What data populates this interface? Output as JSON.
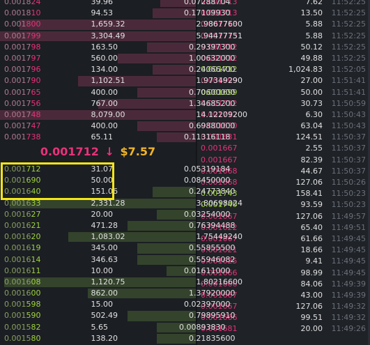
{
  "mid_price": {
    "price": "0.001712",
    "arrow": "↓",
    "usd": "$7.57"
  },
  "asks": [
    {
      "pd": "0.0018",
      "ph": "24",
      "amount": "39.96",
      "total": "0.07288704",
      "fill": 0.18
    },
    {
      "pd": "0.0018",
      "ph": "10",
      "amount": "94.53",
      "total": "0.17109930",
      "fill": 0.22
    },
    {
      "pd": "0.001",
      "ph": "800",
      "amount": "1,659.32",
      "total": "2.98677600",
      "fill": 0.9
    },
    {
      "pd": "0.001",
      "ph": "799",
      "amount": "3,304.49",
      "total": "5.94477751",
      "fill": 1.0
    },
    {
      "pd": "0.0017",
      "ph": "98",
      "amount": "163.50",
      "total": "0.29397300",
      "fill": 0.25
    },
    {
      "pd": "0.0017",
      "ph": "97",
      "amount": "560.00",
      "total": "1.00632000",
      "fill": 0.4
    },
    {
      "pd": "0.0017",
      "ph": "96",
      "amount": "134.00",
      "total": "0.24066400",
      "fill": 0.22
    },
    {
      "pd": "0.0017",
      "ph": "90",
      "amount": "1,102.51",
      "total": "1.97349290",
      "fill": 0.6
    },
    {
      "pd": "0.0017",
      "ph": "65",
      "amount": "400.00",
      "total": "0.70600000",
      "fill": 0.3
    },
    {
      "pd": "0.0017",
      "ph": "56",
      "amount": "767.00",
      "total": "1.34685200",
      "fill": 0.5
    },
    {
      "pd": "0.0017",
      "ph": "48",
      "amount": "8,079.00",
      "total": "14.12209200",
      "fill": 1.0
    },
    {
      "pd": "0.0017",
      "ph": "47",
      "amount": "400.00",
      "total": "0.69880000",
      "fill": 0.3
    },
    {
      "pd": "0.001",
      "ph": "738",
      "amount": "65.11",
      "total": "0.11316118",
      "fill": 0.2
    }
  ],
  "bids": [
    {
      "pd": "0.001",
      "ph": "712",
      "amount": "31.07",
      "total": "0.05319184",
      "fill": 0.0
    },
    {
      "pd": "0.001",
      "ph": "690",
      "amount": "50.00",
      "total": "0.08450000",
      "fill": 0.0
    },
    {
      "pd": "0.0016",
      "ph": "40",
      "amount": "151.06",
      "total": "0.24773840",
      "fill": 0.22
    },
    {
      "pd": "0.0016",
      "ph": "33",
      "amount": "2,331.28",
      "total": "3.80698024",
      "fill": 0.95
    },
    {
      "pd": "0.0016",
      "ph": "27",
      "amount": "20.00",
      "total": "0.03254000",
      "fill": 0.2
    },
    {
      "pd": "0.0016",
      "ph": "21",
      "amount": "471.28",
      "total": "0.76394488",
      "fill": 0.35
    },
    {
      "pd": "0.0016",
      "ph": "20",
      "amount": "1,083.02",
      "total": "1.75449240",
      "fill": 0.65
    },
    {
      "pd": "0.0016",
      "ph": "19",
      "amount": "345.00",
      "total": "0.55855500",
      "fill": 0.3
    },
    {
      "pd": "0.0016",
      "ph": "14",
      "amount": "346.63",
      "total": "0.55946082",
      "fill": 0.3
    },
    {
      "pd": "0.0016",
      "ph": "11",
      "amount": "10.00",
      "total": "0.01611000",
      "fill": 0.15
    },
    {
      "pd": "0.0016",
      "ph": "08",
      "amount": "1,120.75",
      "total": "1.80216600",
      "fill": 0.98
    },
    {
      "pd": "0.0016",
      "ph": "00",
      "amount": "862.00",
      "total": "1.37920000",
      "fill": 0.55
    },
    {
      "pd": "0.001",
      "ph": "598",
      "amount": "15.00",
      "total": "0.02397000",
      "fill": 0.0
    },
    {
      "pd": "0.001",
      "ph": "590",
      "amount": "502.49",
      "total": "0.79895910",
      "fill": 0.35
    },
    {
      "pd": "0.0015",
      "ph": "82",
      "amount": "5.65",
      "total": "0.00893830",
      "fill": 0.2
    },
    {
      "pd": "0.0015",
      "ph": "80",
      "amount": "138.20",
      "total": "0.21835600",
      "fill": 0.2
    }
  ],
  "trades": [
    {
      "price": "0.001713",
      "amount": "7.62",
      "time": "11:52:25",
      "side": "sell"
    },
    {
      "price": "0.001713",
      "amount": "13.50",
      "time": "11:52:25",
      "side": "sell"
    },
    {
      "price": "0.001713",
      "amount": "5.88",
      "time": "11:52:25",
      "side": "sell"
    },
    {
      "price": "0.001713",
      "amount": "5.88",
      "time": "11:52:25",
      "side": "sell"
    },
    {
      "price": "0.001712",
      "amount": "50.12",
      "time": "11:52:25",
      "side": "sell"
    },
    {
      "price": "0.001712",
      "amount": "49.88",
      "time": "11:52:25",
      "side": "sell"
    },
    {
      "price": "0.001712",
      "amount": "1,024.83",
      "time": "11:52:05",
      "side": "buy"
    },
    {
      "price": "0.001699",
      "amount": "27.00",
      "time": "11:51:41",
      "side": "sell"
    },
    {
      "price": "0.001699",
      "amount": "50.00",
      "time": "11:51:41",
      "side": "buy"
    },
    {
      "price": "0.001712",
      "amount": "30.73",
      "time": "11:50:59",
      "side": "sell"
    },
    {
      "price": "0.001712",
      "amount": "6.30",
      "time": "11:50:43",
      "side": "sell"
    },
    {
      "price": "0.001630",
      "amount": "63.04",
      "time": "11:50:43",
      "side": "sell"
    },
    {
      "price": "0.001631",
      "amount": "124.51",
      "time": "11:50:37",
      "side": "sell"
    },
    {
      "price": "0.001667",
      "amount": "2.55",
      "time": "11:50:37",
      "side": "sell"
    },
    {
      "price": "0.001667",
      "amount": "82.39",
      "time": "11:50:37",
      "side": "sell"
    },
    {
      "price": "0.001668",
      "amount": "44.67",
      "time": "11:50:37",
      "side": "sell"
    },
    {
      "price": "0.001668",
      "amount": "127.06",
      "time": "11:50:26",
      "side": "sell"
    },
    {
      "price": "0.001743",
      "amount": "158.41",
      "time": "11:50:23",
      "side": "buy"
    },
    {
      "price": "0.001740",
      "amount": "93.59",
      "time": "11:50:23",
      "side": "buy"
    },
    {
      "price": "0.001667",
      "amount": "127.06",
      "time": "11:49:57",
      "side": "sell"
    },
    {
      "price": "0.001622",
      "amount": "65.40",
      "time": "11:49:51",
      "side": "sell"
    },
    {
      "price": "0.001667",
      "amount": "61.66",
      "time": "11:49:45",
      "side": "sell"
    },
    {
      "price": "0.001621",
      "amount": "18.66",
      "time": "11:49:45",
      "side": "sell"
    },
    {
      "price": "0.001625",
      "amount": "9.41",
      "time": "11:49:45",
      "side": "sell"
    },
    {
      "price": "0.001666",
      "amount": "98.99",
      "time": "11:49:45",
      "side": "sell"
    },
    {
      "price": "0.001666",
      "amount": "84.06",
      "time": "11:49:39",
      "side": "sell"
    },
    {
      "price": "0.001667",
      "amount": "43.00",
      "time": "11:49:39",
      "side": "sell"
    },
    {
      "price": "0.001667",
      "amount": "127.06",
      "time": "11:49:32",
      "side": "sell"
    },
    {
      "price": "0.001666",
      "amount": "99.51",
      "time": "11:49:32",
      "side": "sell"
    },
    {
      "price": "0.001681",
      "amount": "20.00",
      "time": "11:49:26",
      "side": "sell"
    }
  ]
}
